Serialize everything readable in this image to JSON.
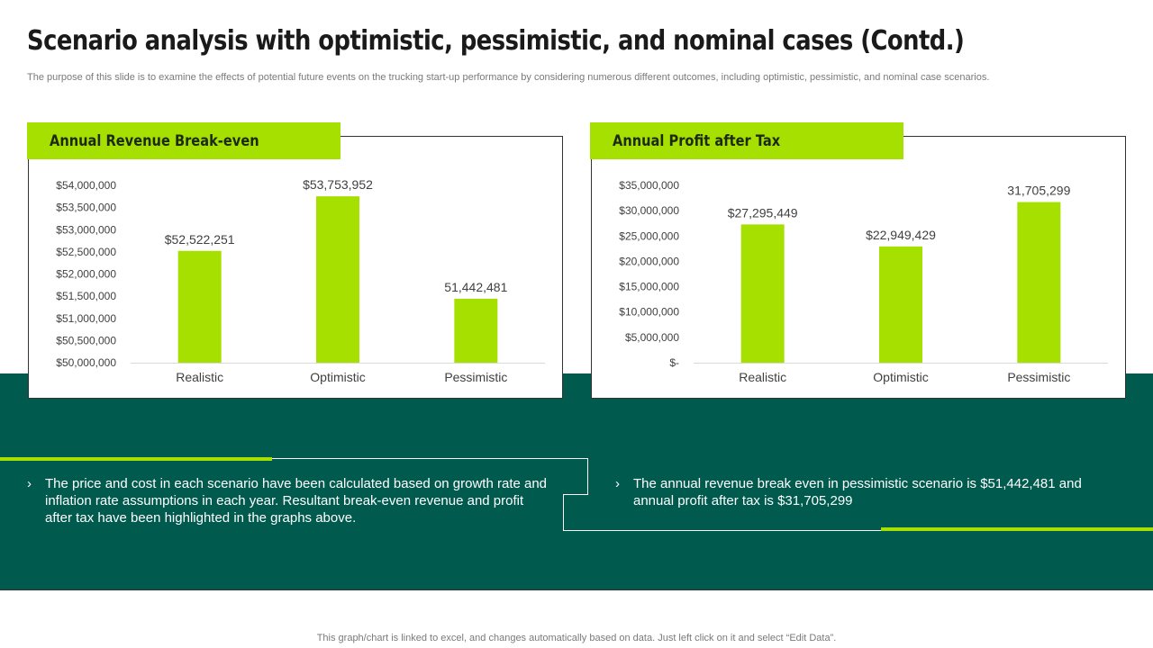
{
  "header": {
    "title": "Scenario analysis with optimistic, pessimistic, and nominal cases (Contd.)",
    "subtitle": "The purpose of this slide is to examine the effects of potential future events on the trucking start-up performance by considering numerous different outcomes, including optimistic, pessimistic, and nominal case scenarios."
  },
  "colors": {
    "accent": "#a6e000",
    "band": "#005a4e",
    "bar": "#a6e000"
  },
  "chart_data": [
    {
      "type": "bar",
      "title": "Annual Revenue Break-even",
      "categories": [
        "Realistic",
        "Optimistic",
        "Pessimistic"
      ],
      "values": [
        52522251,
        53753952,
        51442481
      ],
      "data_labels": [
        "$52,522,251",
        "$53,753,952",
        "51,442,481"
      ],
      "ylim": [
        50000000,
        54000000
      ],
      "yticks": [
        50000000,
        50500000,
        51000000,
        51500000,
        52000000,
        52500000,
        53000000,
        53500000,
        54000000
      ],
      "ytick_labels": [
        "$50,000,000",
        "$50,500,000",
        "$51,000,000",
        "$51,500,000",
        "$52,000,000",
        "$52,500,000",
        "$53,000,000",
        "$53,500,000",
        "$54,000,000"
      ],
      "xlabel": "",
      "ylabel": "",
      "grid": false
    },
    {
      "type": "bar",
      "title": "Annual Profit after Tax",
      "categories": [
        "Realistic",
        "Optimistic",
        "Pessimistic"
      ],
      "values": [
        27295449,
        22949429,
        31705299
      ],
      "data_labels": [
        "$27,295,449",
        "$22,949,429",
        "31,705,299"
      ],
      "ylim": [
        0,
        35000000
      ],
      "yticks": [
        0,
        5000000,
        10000000,
        15000000,
        20000000,
        25000000,
        30000000,
        35000000
      ],
      "ytick_labels": [
        "$-",
        "$5,000,000",
        "$10,000,000",
        "$15,000,000",
        "$20,000,000",
        "$25,000,000",
        "$30,000,000",
        "$35,000,000"
      ],
      "xlabel": "",
      "ylabel": "",
      "grid": false
    }
  ],
  "notes": {
    "bullet_mark": "›",
    "left": "The price and cost in each scenario have been calculated based on growth rate and inflation rate assumptions in each year. Resultant break-even revenue and profit after tax have been highlighted in the graphs above.",
    "right": "The annual revenue break even in pessimistic scenario is $51,442,481 and annual profit after tax is $31,705,299"
  },
  "footer": {
    "note": "This graph/chart is linked to excel,  and changes automatically based on data. Just left click on it and select “Edit Data”."
  }
}
